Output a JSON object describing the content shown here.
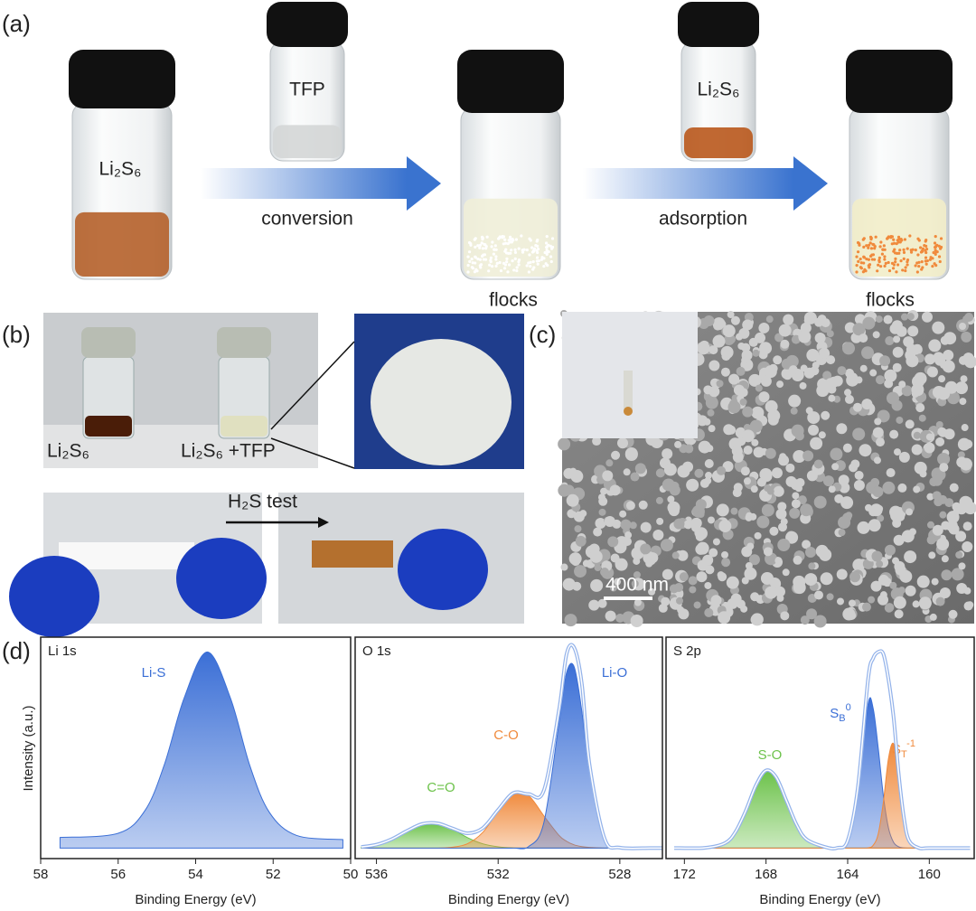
{
  "panels": {
    "a": {
      "label": "(a)",
      "vial1": "Li₂S₆",
      "vial2": "TFP",
      "arrow1": "conversion",
      "vial4": "Li₂S₆",
      "arrow2": "adsorption",
      "flocks1": "flocks",
      "flocks2": "flocks"
    },
    "b": {
      "label": "(b)",
      "photo1": "Li₂S₆",
      "photo2": "Li₂S₆ +TFP",
      "test": "H₂S test"
    },
    "c": {
      "label": "(c)",
      "scale": "400 nm"
    },
    "d": {
      "label": "(d)",
      "ylabel": "Intensity (a.u.)"
    }
  },
  "chart_data": [
    {
      "type": "line",
      "title": "Li 1s",
      "xlabel": "Binding Energy (eV)",
      "xlim": [
        58,
        50
      ],
      "xticks": [
        58,
        56,
        54,
        52,
        50
      ],
      "ylim": [
        -5,
        100
      ],
      "x": [
        57.5,
        56,
        55.3,
        54.8,
        54.3,
        53.7,
        53.1,
        52.6,
        52.1,
        51.4,
        50.2
      ],
      "series": [
        {
          "name": "Li-S",
          "color": "#3b6fd6",
          "fill": true,
          "values": [
            5,
            7,
            18,
            40,
            71,
            93,
            71,
            39,
            17,
            6,
            4
          ]
        }
      ]
    },
    {
      "type": "line",
      "title": "O 1s",
      "xlabel": "Binding Energy (eV)",
      "xlim": [
        536.7,
        526.6
      ],
      "xticks": [
        536,
        532,
        528
      ],
      "ylim": [
        -5,
        100
      ],
      "x": [
        536.5,
        536,
        535.5,
        535,
        534.5,
        534,
        533.5,
        533,
        532.5,
        532,
        531.5,
        531,
        530.5,
        530,
        529.75,
        529.5,
        529.25,
        529,
        528.5,
        528,
        527,
        526.6
      ],
      "series": [
        {
          "name": "C=O",
          "color": "#6cc24a",
          "fill": true,
          "values": [
            0.5,
            1.6,
            4.2,
            8.1,
            11.4,
            11.7,
            8.9,
            4.9,
            2,
            0.6,
            0.1,
            0,
            0,
            0,
            0,
            0,
            0,
            0,
            0,
            0,
            0,
            0
          ]
        },
        {
          "name": "C-O",
          "color": "#f08a3c",
          "fill": true,
          "values": [
            0,
            0,
            0,
            0,
            0,
            0,
            0.4,
            2.1,
            7.5,
            17.5,
            26,
            24.9,
            15.3,
            6,
            3.2,
            1.5,
            0.7,
            0.3,
            0,
            0,
            0,
            0
          ]
        },
        {
          "name": "Li-O",
          "color": "#3b6fd6",
          "fill": true,
          "values": [
            0,
            0,
            0,
            0,
            0,
            0,
            0,
            0,
            0,
            0,
            0,
            0.7,
            11.9,
            59.3,
            83.2,
            85.9,
            65,
            36.1,
            4.4,
            0.2,
            0,
            0
          ]
        },
        {
          "color": "#94b3ea",
          "fill": false,
          "values": [
            0.5,
            1.6,
            4.2,
            8.1,
            11.4,
            11.7,
            9.3,
            7,
            9.5,
            18.1,
            26.1,
            25.6,
            27.2,
            65.3,
            92,
            95,
            78,
            40,
            4.4,
            0.2,
            0,
            0
          ]
        }
      ]
    },
    {
      "type": "line",
      "title": "S 2p",
      "xlabel": "Binding Energy (eV)",
      "xlim": [
        172.9,
        157.8
      ],
      "xticks": [
        172,
        168,
        164,
        160
      ],
      "ylim": [
        -5,
        100
      ],
      "x": [
        172.5,
        171,
        170,
        169.5,
        169,
        168.5,
        168,
        167.5,
        167,
        166.5,
        166,
        165,
        164.5,
        164,
        163.5,
        163,
        162.75,
        162.5,
        162.25,
        162,
        161.75,
        161.5,
        161.25,
        161,
        160.5,
        160,
        158
      ],
      "series": [
        {
          "name": "S-O",
          "color": "#6cc24a",
          "fill": true,
          "values": [
            0,
            0.1,
            2.4,
            7.6,
            17.5,
            29.6,
            36.8,
            33.5,
            22.4,
            11,
            4,
            0.2,
            0,
            0,
            0,
            0,
            0,
            0,
            0,
            0,
            0,
            0,
            0,
            0,
            0,
            0,
            0
          ]
        },
        {
          "name": {
            "base": "S",
            "sub": "B",
            "sup": "0"
          },
          "color": "#3b6fd6",
          "fill": true,
          "values": [
            0,
            0,
            0,
            0,
            0,
            0,
            0,
            0,
            0,
            0,
            0,
            0,
            0.1,
            3.5,
            28.7,
            68.3,
            66.2,
            47.2,
            24.7,
            9.5,
            2.7,
            0.6,
            0.1,
            0,
            0,
            0,
            0
          ]
        },
        {
          "name": {
            "base": "S",
            "sub": "T",
            "sup": "-1"
          },
          "color": "#f08a3c",
          "fill": true,
          "values": [
            0,
            0,
            0,
            0,
            0,
            0,
            0,
            0,
            0,
            0,
            0,
            0,
            0,
            0,
            0,
            0.1,
            1.3,
            6.8,
            21.9,
            42.5,
            49.5,
            34.6,
            14.6,
            3.7,
            0,
            0,
            0
          ]
        },
        {
          "color": "#94b3ea",
          "fill": false,
          "values": [
            0,
            0.1,
            2.4,
            7.6,
            17.5,
            29.6,
            36.8,
            33.5,
            22.4,
            11,
            4,
            0.2,
            0.1,
            3.5,
            28.7,
            80,
            90,
            93,
            92,
            80,
            62,
            35.2,
            14.7,
            3.7,
            0,
            0,
            0
          ]
        }
      ]
    }
  ]
}
